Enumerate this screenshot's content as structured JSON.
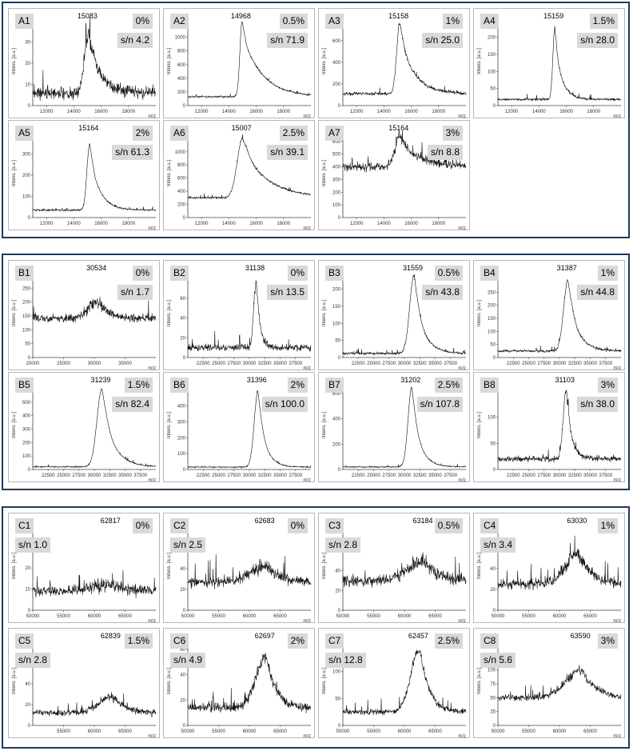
{
  "groups": [
    {
      "id": "A",
      "panels": [
        {
          "label": "A1",
          "percent": "0%",
          "sn": "s/n 4.2",
          "peak": "15083",
          "xlim": [
            11000,
            20000
          ],
          "xticks": [
            "12000",
            "14000",
            "16000",
            "18000"
          ],
          "ylim": [
            0,
            42
          ],
          "yticks": [
            "0",
            "10",
            "20",
            "30",
            "40"
          ],
          "baseline": 6,
          "peak_height": 34,
          "noise": 5,
          "peak_center": 15083,
          "peak_width": 300,
          "tail": 900
        },
        {
          "label": "A2",
          "percent": "0.5%",
          "sn": "s/n 71.9",
          "peak": "14968",
          "xlim": [
            11000,
            20000
          ],
          "xticks": [
            "12000",
            "14000",
            "16000",
            "18000"
          ],
          "ylim": [
            0,
            1300
          ],
          "yticks": [
            "0",
            "200",
            "400",
            "600",
            "800",
            "1000",
            "1200"
          ],
          "baseline": 130,
          "peak_height": 1230,
          "noise": 20,
          "peak_center": 14968,
          "peak_width": 160,
          "tail": 1400
        },
        {
          "label": "A3",
          "percent": "1%",
          "sn": "s/n 25.0",
          "peak": "15158",
          "xlim": [
            11000,
            20000
          ],
          "xticks": [
            "12000",
            "14000",
            "16000",
            "18000"
          ],
          "ylim": [
            0,
            820
          ],
          "yticks": [
            "0",
            "200",
            "400",
            "600",
            "800"
          ],
          "baseline": 110,
          "peak_height": 760,
          "noise": 25,
          "peak_center": 15158,
          "peak_width": 220,
          "tail": 1000
        },
        {
          "label": "A4",
          "percent": "1.5%",
          "sn": "s/n 28.0",
          "peak": "15159",
          "xlim": [
            11000,
            20000
          ],
          "xticks": [
            "12000",
            "14000",
            "16000",
            "18000"
          ],
          "ylim": [
            0,
            260
          ],
          "yticks": [
            "0",
            "50",
            "100",
            "150",
            "200",
            "250"
          ],
          "baseline": 18,
          "peak_height": 225,
          "noise": 6,
          "peak_center": 15159,
          "peak_width": 140,
          "tail": 500
        },
        {
          "label": "A5",
          "percent": "2%",
          "sn": "s/n 61.3",
          "peak": "15164",
          "xlim": [
            11000,
            20000
          ],
          "xticks": [
            "12000",
            "14000",
            "16000",
            "18000"
          ],
          "ylim": [
            0,
            420
          ],
          "yticks": [
            "0",
            "100",
            "200",
            "300",
            "400"
          ],
          "baseline": 35,
          "peak_height": 350,
          "noise": 7,
          "peak_center": 15164,
          "peak_width": 200,
          "tail": 700
        },
        {
          "label": "A6",
          "percent": "2.5%",
          "sn": "s/n 39.1",
          "peak": "15007",
          "xlim": [
            11000,
            20000
          ],
          "xticks": [
            "12000",
            "14000",
            "16000",
            "18000"
          ],
          "ylim": [
            0,
            1350
          ],
          "yticks": [
            "0",
            "200",
            "400",
            "600",
            "800",
            "1000",
            "1200"
          ],
          "baseline": 300,
          "peak_height": 1200,
          "noise": 25,
          "peak_center": 15007,
          "peak_width": 400,
          "tail": 1800
        },
        {
          "label": "A7",
          "percent": "3%",
          "sn": "s/n 8.8",
          "peak": "15164",
          "xlim": [
            11000,
            20000
          ],
          "xticks": [
            "12000",
            "14000",
            "16000",
            "18000"
          ],
          "ylim": [
            0,
            700
          ],
          "yticks": [
            "0",
            "100",
            "200",
            "300",
            "400",
            "500",
            "600"
          ],
          "baseline": 400,
          "peak_height": 640,
          "noise": 55,
          "peak_center": 15164,
          "peak_width": 350,
          "tail": 1500
        }
      ]
    },
    {
      "id": "B",
      "panels": [
        {
          "label": "B1",
          "percent": "0%",
          "sn": "s/n 1.7",
          "peak": "30534",
          "xlim": [
            20000,
            40000
          ],
          "xticks": [
            "20000",
            "25000",
            "30000",
            "35000"
          ],
          "ylim": [
            0,
            320
          ],
          "yticks": [
            "0",
            "50",
            "100",
            "150",
            "200",
            "250",
            "300"
          ],
          "baseline": 140,
          "peak_height": 200,
          "noise": 25,
          "peak_center": 30534,
          "peak_width": 1500,
          "tail": 2000
        },
        {
          "label": "B2",
          "percent": "0%",
          "sn": "s/n 13.5",
          "peak": "31138",
          "xlim": [
            20000,
            40000
          ],
          "xticks": [
            "22500",
            "25000",
            "27500",
            "30000",
            "32500",
            "35000",
            "37500"
          ],
          "ylim": [
            0,
            90
          ],
          "yticks": [
            "0",
            "20",
            "40",
            "60",
            "80"
          ],
          "baseline": 10,
          "peak_height": 78,
          "noise": 6,
          "peak_center": 31138,
          "peak_width": 400,
          "tail": 600
        },
        {
          "label": "B3",
          "percent": "0.5%",
          "sn": "s/n 43.8",
          "peak": "31559",
          "xlim": [
            20000,
            40000
          ],
          "xticks": [
            "22500",
            "25000",
            "27500",
            "30000",
            "32500",
            "35000",
            "37500"
          ],
          "ylim": [
            0,
            260
          ],
          "yticks": [
            "0",
            "50",
            "100",
            "150",
            "200",
            "250"
          ],
          "baseline": 12,
          "peak_height": 240,
          "noise": 6,
          "peak_center": 31559,
          "peak_width": 700,
          "tail": 1500
        },
        {
          "label": "B4",
          "percent": "1%",
          "sn": "s/n 44.8",
          "peak": "31387",
          "xlim": [
            20000,
            40000
          ],
          "xticks": [
            "22500",
            "25000",
            "27500",
            "30000",
            "32500",
            "35000",
            "37500"
          ],
          "ylim": [
            0,
            340
          ],
          "yticks": [
            "0",
            "50",
            "100",
            "150",
            "200",
            "250",
            "300"
          ],
          "baseline": 25,
          "peak_height": 295,
          "noise": 8,
          "peak_center": 31387,
          "peak_width": 700,
          "tail": 1500
        },
        {
          "label": "B5",
          "percent": "1.5%",
          "sn": "s/n 82.4",
          "peak": "31239",
          "xlim": [
            20000,
            40000
          ],
          "xticks": [
            "22500",
            "25000",
            "27500",
            "30000",
            "32500",
            "35000",
            "37500"
          ],
          "ylim": [
            0,
            660
          ],
          "yticks": [
            "0",
            "100",
            "200",
            "300",
            "400",
            "500",
            "600"
          ],
          "baseline": 20,
          "peak_height": 600,
          "noise": 8,
          "peak_center": 31239,
          "peak_width": 800,
          "tail": 1800
        },
        {
          "label": "B6",
          "percent": "2%",
          "sn": "s/n 100.0",
          "peak": "31396",
          "xlim": [
            20000,
            40000
          ],
          "xticks": [
            "22500",
            "25000",
            "27500",
            "30000",
            "32500",
            "35000",
            "37500"
          ],
          "ylim": [
            0,
            560
          ],
          "yticks": [
            "0",
            "100",
            "200",
            "300",
            "400",
            "500"
          ],
          "baseline": 15,
          "peak_height": 490,
          "noise": 6,
          "peak_center": 31396,
          "peak_width": 600,
          "tail": 1200
        },
        {
          "label": "B7",
          "percent": "2.5%",
          "sn": "s/n 107.8",
          "peak": "31202",
          "xlim": [
            20000,
            40000
          ],
          "xticks": [
            "22500",
            "25000",
            "27500",
            "30000",
            "32500",
            "35000",
            "37500"
          ],
          "ylim": [
            0,
            700
          ],
          "yticks": [
            "0",
            "200",
            "400",
            "600"
          ],
          "baseline": 20,
          "peak_height": 650,
          "noise": 8,
          "peak_center": 31202,
          "peak_width": 600,
          "tail": 1300
        },
        {
          "label": "B8",
          "percent": "3%",
          "sn": "s/n 38.0",
          "peak": "31103",
          "xlim": [
            20000,
            40000
          ],
          "xticks": [
            "22500",
            "25000",
            "27500",
            "30000",
            "32500",
            "35000",
            "37500"
          ],
          "ylim": [
            0,
            170
          ],
          "yticks": [
            "0",
            "50",
            "100",
            "150"
          ],
          "baseline": 20,
          "peak_height": 150,
          "noise": 9,
          "peak_center": 31103,
          "peak_width": 500,
          "tail": 900
        }
      ]
    },
    {
      "id": "C",
      "panels": [
        {
          "label": "C1",
          "percent": "0%",
          "sn": "s/n 1.0",
          "peak": "62817",
          "xlim": [
            50000,
            70000
          ],
          "xticks": [
            "50000",
            "55000",
            "60000",
            "65000"
          ],
          "ylim": [
            0,
            42
          ],
          "yticks": [
            "0",
            "10",
            "20",
            "30",
            "40"
          ],
          "baseline": 9,
          "peak_height": 12,
          "noise": 4,
          "peak_center": 62817,
          "peak_width": 3000,
          "tail": 2000
        },
        {
          "label": "C2",
          "percent": "0%",
          "sn": "s/n 2.5",
          "peak": "62683",
          "xlim": [
            50000,
            70000
          ],
          "xticks": [
            "50000",
            "55000",
            "60000",
            "65000"
          ],
          "ylim": [
            0,
            85
          ],
          "yticks": [
            "0",
            "20",
            "40",
            "60",
            "80"
          ],
          "baseline": 27,
          "peak_height": 42,
          "noise": 8,
          "peak_center": 62683,
          "peak_width": 2500,
          "tail": 2000
        },
        {
          "label": "C3",
          "percent": "0.5%",
          "sn": "s/n 2.8",
          "peak": "63184",
          "xlim": [
            50000,
            70000
          ],
          "xticks": [
            "50000",
            "55000",
            "60000",
            "65000"
          ],
          "ylim": [
            0,
            90
          ],
          "yticks": [
            "0",
            "20",
            "40",
            "60",
            "80"
          ],
          "baseline": 30,
          "peak_height": 50,
          "noise": 9,
          "peak_center": 63184,
          "peak_width": 2500,
          "tail": 2000
        },
        {
          "label": "C4",
          "percent": "1%",
          "sn": "s/n 3.4",
          "peak": "63030",
          "xlim": [
            50000,
            70000
          ],
          "xticks": [
            "50000",
            "55000",
            "60000",
            "65000"
          ],
          "ylim": [
            0,
            85
          ],
          "yticks": [
            "0",
            "20",
            "40",
            "60",
            "80"
          ],
          "baseline": 25,
          "peak_height": 55,
          "noise": 8,
          "peak_center": 63030,
          "peak_width": 2000,
          "tail": 2000
        },
        {
          "label": "C5",
          "percent": "1.5%",
          "sn": "s/n 2.8",
          "peak": "62839",
          "xlim": [
            50000,
            70000
          ],
          "xticks": [
            "55000",
            "60000",
            "65000"
          ],
          "ylim": [
            0,
            85
          ],
          "yticks": [
            "0",
            "20",
            "40",
            "60",
            "80"
          ],
          "baseline": 12,
          "peak_height": 28,
          "noise": 5,
          "peak_center": 62839,
          "peak_width": 2000,
          "tail": 2000
        },
        {
          "label": "C6",
          "percent": "2%",
          "sn": "s/n 4.9",
          "peak": "62697",
          "xlim": [
            50000,
            70000
          ],
          "xticks": [
            "50000",
            "55000",
            "60000",
            "65000"
          ],
          "ylim": [
            0,
            70
          ],
          "yticks": [
            "0",
            "20",
            "40",
            "60"
          ],
          "baseline": 14,
          "peak_height": 55,
          "noise": 6,
          "peak_center": 62697,
          "peak_width": 1600,
          "tail": 1500
        },
        {
          "label": "C7",
          "percent": "2.5%",
          "sn": "s/n 12.8",
          "peak": "62457",
          "xlim": [
            50000,
            70000
          ],
          "xticks": [
            "50000",
            "55000",
            "60000",
            "65000"
          ],
          "ylim": [
            0,
            165
          ],
          "yticks": [
            "0",
            "50",
            "100",
            "150"
          ],
          "baseline": 25,
          "peak_height": 140,
          "noise": 9,
          "peak_center": 62457,
          "peak_width": 1400,
          "tail": 1500
        },
        {
          "label": "C8",
          "percent": "3%",
          "sn": "s/n 5.6",
          "peak": "63590",
          "xlim": [
            50000,
            70000
          ],
          "xticks": [
            "50000",
            "55000",
            "60000",
            "65000"
          ],
          "ylim": [
            0,
            160
          ],
          "yticks": [
            "0",
            "25",
            "50",
            "75",
            "100",
            "125",
            "150"
          ],
          "baseline": 50,
          "peak_height": 100,
          "noise": 10,
          "peak_center": 63590,
          "peak_width": 2500,
          "tail": 2000
        }
      ]
    }
  ],
  "axis": {
    "ylabel": "Intens. [a.u.]",
    "xlabel": "m/z"
  },
  "chart_data": {
    "type": "line",
    "description_units": "MALDI mass spectra, x in m/z, y in intensity [a.u.]",
    "panels_source": "groups[].panels[]"
  }
}
